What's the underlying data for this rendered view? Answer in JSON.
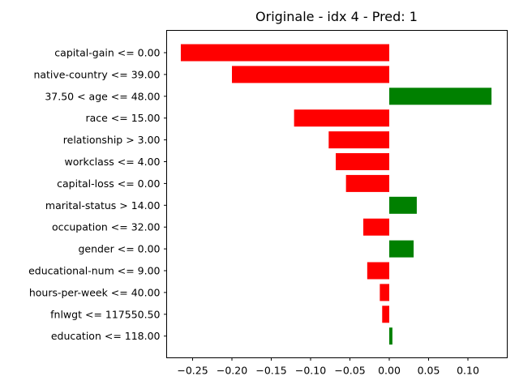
{
  "chart_data": {
    "type": "bar",
    "orientation": "horizontal",
    "title": "Originale - idx 4 - Pred: 1",
    "xlabel": "",
    "ylabel": "",
    "xlim": [
      -0.283,
      0.15
    ],
    "grid": false,
    "colors": {
      "positive": "#008000",
      "negative": "#ff0000"
    },
    "categories": [
      "capital-gain <= 0.00",
      "native-country <= 39.00",
      "37.50 < age <= 48.00",
      "race <= 15.00",
      "relationship > 3.00",
      "workclass <= 4.00",
      "capital-loss <= 0.00",
      "marital-status > 14.00",
      "occupation <= 32.00",
      "gender <= 0.00",
      "educational-num <= 9.00",
      "hours-per-week <= 40.00",
      "fnlwgt <= 117550.50",
      "education <= 118.00"
    ],
    "values": [
      -0.265,
      -0.2,
      0.13,
      -0.121,
      -0.077,
      -0.068,
      -0.055,
      0.035,
      -0.033,
      0.031,
      -0.028,
      -0.012,
      -0.009,
      0.004
    ],
    "xticks": [
      -0.25,
      -0.2,
      -0.15,
      -0.1,
      -0.05,
      0.0,
      0.05,
      0.1
    ],
    "xtick_labels": [
      "−0.25",
      "−0.20",
      "−0.15",
      "−0.10",
      "−0.05",
      "0.00",
      "0.05",
      "0.10"
    ]
  }
}
